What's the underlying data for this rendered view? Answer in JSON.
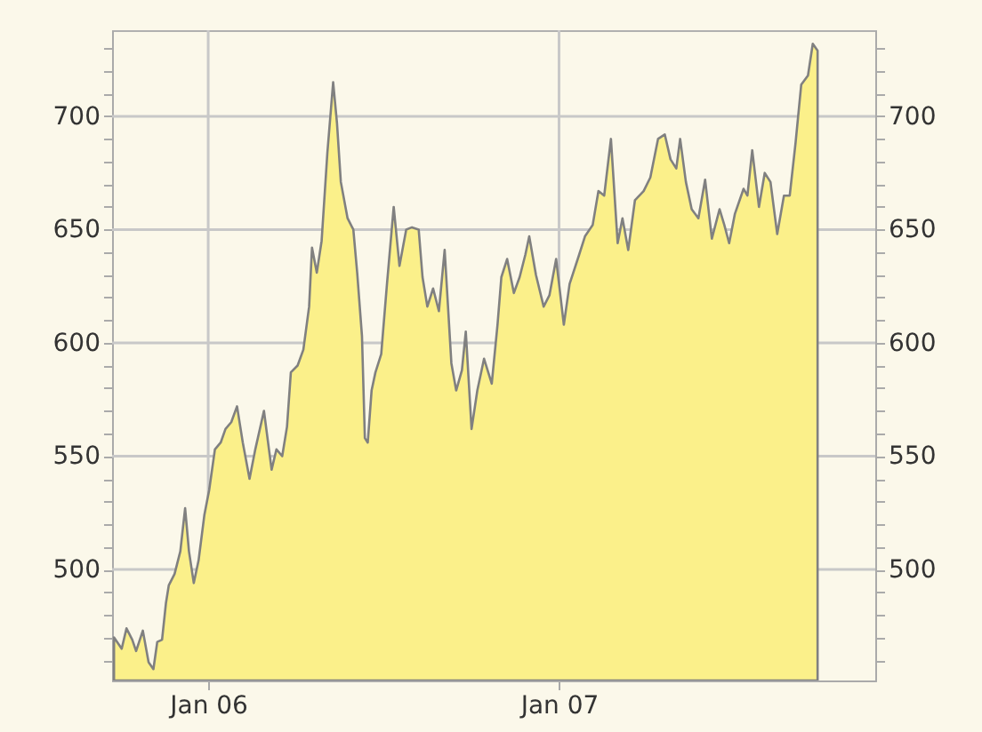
{
  "chart_data": {
    "type": "area",
    "x": [
      "2005-09-25",
      "2005-10-03",
      "2005-10-08",
      "2005-10-14",
      "2005-10-18",
      "2005-10-25",
      "2005-10-31",
      "2005-11-05",
      "2005-11-09",
      "2005-11-14",
      "2005-11-18",
      "2005-11-21",
      "2005-11-27",
      "2005-12-03",
      "2005-12-08",
      "2005-12-12",
      "2005-12-17",
      "2005-12-22",
      "2005-12-28",
      "2006-01-02",
      "2006-01-08",
      "2006-01-14",
      "2006-01-19",
      "2006-01-25",
      "2006-01-31",
      "2006-02-06",
      "2006-02-13",
      "2006-02-19",
      "2006-02-28",
      "2006-03-08",
      "2006-03-13",
      "2006-03-19",
      "2006-03-24",
      "2006-03-28",
      "2006-04-04",
      "2006-04-10",
      "2006-04-16",
      "2006-04-19",
      "2006-04-24",
      "2006-04-29",
      "2006-05-05",
      "2006-05-11",
      "2006-05-15",
      "2006-05-19",
      "2006-05-26",
      "2006-06-01",
      "2006-06-05",
      "2006-06-10",
      "2006-06-13",
      "2006-06-16",
      "2006-06-20",
      "2006-06-24",
      "2006-06-30",
      "2006-07-06",
      "2006-07-13",
      "2006-07-19",
      "2006-07-26",
      "2006-08-01",
      "2006-08-08",
      "2006-08-12",
      "2006-08-17",
      "2006-08-23",
      "2006-08-29",
      "2006-09-04",
      "2006-09-11",
      "2006-09-16",
      "2006-09-22",
      "2006-09-26",
      "2006-10-02",
      "2006-10-08",
      "2006-10-15",
      "2006-10-23",
      "2006-10-29",
      "2006-11-02",
      "2006-11-08",
      "2006-11-15",
      "2006-11-21",
      "2006-11-27",
      "2006-12-01",
      "2006-12-08",
      "2006-12-16",
      "2006-12-22",
      "2006-12-29",
      "2007-01-06",
      "2007-01-12",
      "2007-01-22",
      "2007-01-28",
      "2007-02-05",
      "2007-02-11",
      "2007-02-17",
      "2007-02-24",
      "2007-03-03",
      "2007-03-08",
      "2007-03-14",
      "2007-03-21",
      "2007-03-30",
      "2007-04-06",
      "2007-04-14",
      "2007-04-21",
      "2007-04-27",
      "2007-05-03",
      "2007-05-07",
      "2007-05-13",
      "2007-05-19",
      "2007-05-26",
      "2007-06-02",
      "2007-06-09",
      "2007-06-17",
      "2007-06-22",
      "2007-06-27",
      "2007-07-03",
      "2007-07-12",
      "2007-07-16",
      "2007-07-21",
      "2007-07-28",
      "2007-08-03",
      "2007-08-09",
      "2007-08-16",
      "2007-08-23",
      "2007-08-29",
      "2007-09-04",
      "2007-09-10",
      "2007-09-17",
      "2007-09-22",
      "2007-09-27"
    ],
    "series": [
      {
        "color": "#fbf08a",
        "values": [
          470,
          465,
          474,
          469,
          464,
          473,
          459,
          456,
          468,
          469,
          485,
          493,
          498,
          508,
          527,
          508,
          494,
          504,
          524,
          535,
          553,
          556,
          562,
          565,
          572,
          556,
          540,
          553,
          570,
          544,
          553,
          550,
          563,
          587,
          590,
          597,
          616,
          642,
          631,
          645,
          684,
          715,
          697,
          671,
          655,
          650,
          631,
          603,
          558,
          556,
          579,
          587,
          595,
          626,
          660,
          634,
          650,
          651,
          650,
          629,
          616,
          624,
          614,
          641,
          591,
          579,
          588,
          605,
          562,
          579,
          593,
          582,
          608,
          629,
          637,
          622,
          629,
          639,
          647,
          630,
          616,
          621,
          637,
          608,
          626,
          639,
          647,
          652,
          667,
          665,
          690,
          644,
          655,
          641,
          663,
          667,
          673,
          690,
          692,
          681,
          677,
          690,
          671,
          659,
          655,
          672,
          646,
          659,
          652,
          644,
          657,
          668,
          665,
          685,
          660,
          675,
          671,
          648,
          665,
          665,
          688,
          714,
          718,
          732,
          729
        ]
      }
    ],
    "xlim": [
      "2005-09-23",
      "2007-11-26"
    ],
    "xticks": [
      {
        "value": "2006-01-01",
        "label": "Jan 06"
      },
      {
        "value": "2007-01-01",
        "label": "Jan 07"
      }
    ],
    "ylim": [
      451,
      738
    ],
    "yticks": [
      {
        "value": 460,
        "label": null
      },
      {
        "value": 470,
        "label": null
      },
      {
        "value": 480,
        "label": null
      },
      {
        "value": 490,
        "label": null
      },
      500,
      {
        "value": 510,
        "label": null
      },
      {
        "value": 520,
        "label": null
      },
      {
        "value": 530,
        "label": null
      },
      {
        "value": 540,
        "label": null
      },
      550,
      {
        "value": 560,
        "label": null
      },
      {
        "value": 570,
        "label": null
      },
      {
        "value": 580,
        "label": null
      },
      {
        "value": 590,
        "label": null
      },
      600,
      {
        "value": 610,
        "label": null
      },
      {
        "value": 620,
        "label": null
      },
      {
        "value": 630,
        "label": null
      },
      {
        "value": 640,
        "label": null
      },
      650,
      {
        "value": 660,
        "label": null
      },
      {
        "value": 670,
        "label": null
      },
      {
        "value": 680,
        "label": null
      },
      {
        "value": 690,
        "label": null
      },
      700,
      {
        "value": 710,
        "label": null
      },
      {
        "value": 720,
        "label": null
      },
      {
        "value": 730,
        "label": null
      }
    ],
    "y2lim": [
      451,
      738
    ],
    "y2ticks": [
      {
        "value": 460,
        "label": null
      },
      {
        "value": 470,
        "label": null
      },
      {
        "value": 480,
        "label": null
      },
      {
        "value": 490,
        "label": null
      },
      500,
      {
        "value": 510,
        "label": null
      },
      {
        "value": 520,
        "label": null
      },
      {
        "value": 530,
        "label": null
      },
      {
        "value": 540,
        "label": null
      },
      550,
      {
        "value": 560,
        "label": null
      },
      {
        "value": 570,
        "label": null
      },
      {
        "value": 580,
        "label": null
      },
      {
        "value": 590,
        "label": null
      },
      600,
      {
        "value": 610,
        "label": null
      },
      {
        "value": 620,
        "label": null
      },
      {
        "value": 630,
        "label": null
      },
      {
        "value": 640,
        "label": null
      },
      650,
      {
        "value": 660,
        "label": null
      },
      {
        "value": 670,
        "label": null
      },
      {
        "value": 680,
        "label": null
      },
      {
        "value": 690,
        "label": null
      },
      700,
      {
        "value": 710,
        "label": null
      },
      {
        "value": 720,
        "label": null
      },
      {
        "value": 730,
        "label": null
      }
    ],
    "grid": true
  }
}
